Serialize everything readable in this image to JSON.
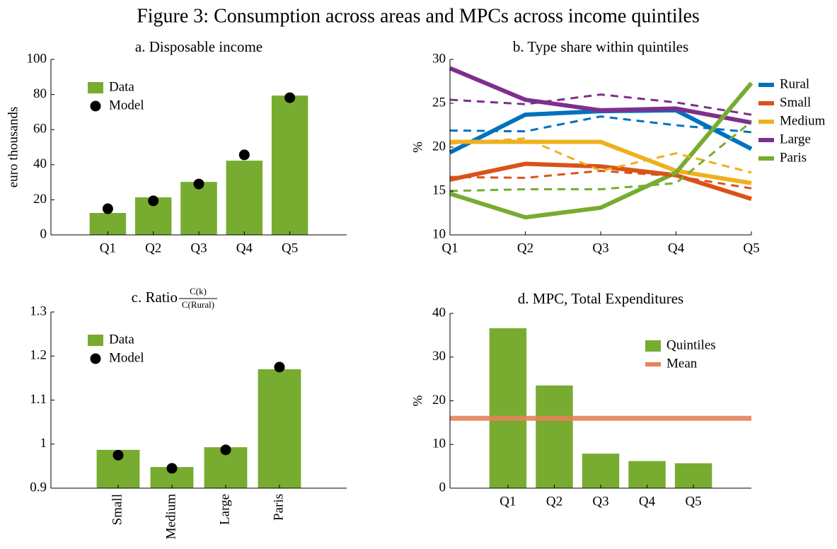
{
  "title": "Figure 3: Consumption across areas and MPCs across income quintiles",
  "chart_data": [
    {
      "type": "bar",
      "title": "a. Disposable income",
      "ylabel": "euro thousands",
      "categories": [
        "Q1",
        "Q2",
        "Q3",
        "Q4",
        "Q5"
      ],
      "ylim": [
        0,
        100
      ],
      "yticks": [
        0,
        20,
        40,
        60,
        80,
        100
      ],
      "legend": "upper left",
      "series": [
        {
          "name": "Data",
          "kind": "bar",
          "color": "#77ac30",
          "values": [
            12.5,
            21.4,
            30.2,
            42.3,
            79.4
          ]
        },
        {
          "name": "Model",
          "kind": "dot",
          "color": "#000000",
          "values": [
            14.9,
            19.4,
            29.0,
            45.6,
            78.2
          ]
        }
      ]
    },
    {
      "type": "line",
      "title": "b. Type share within quintiles",
      "ylabel": "%",
      "categories": [
        "Q1",
        "Q2",
        "Q3",
        "Q4",
        "Q5"
      ],
      "ylim": [
        10,
        30
      ],
      "yticks": [
        10,
        15,
        20,
        25,
        30
      ],
      "legend": "outside right",
      "series": [
        {
          "name": "Rural",
          "color": "#0072bd",
          "values": [
            19.4,
            23.7,
            24.1,
            24.2,
            19.8
          ]
        },
        {
          "name": "Small",
          "color": "#d95319",
          "values": [
            16.3,
            18.1,
            17.8,
            16.8,
            14.1
          ]
        },
        {
          "name": "Medium",
          "color": "#edb120",
          "values": [
            20.6,
            20.6,
            20.6,
            17.3,
            15.9
          ]
        },
        {
          "name": "Large",
          "color": "#7e2f8e",
          "values": [
            29.0,
            25.4,
            24.2,
            24.4,
            22.8
          ]
        },
        {
          "name": "Paris",
          "color": "#77ac30",
          "values": [
            14.7,
            12.0,
            13.1,
            17.1,
            27.3
          ]
        },
        {
          "color": "#0072bd",
          "dashed": true,
          "values": [
            21.9,
            21.8,
            23.5,
            22.5,
            21.7
          ]
        },
        {
          "color": "#d95319",
          "dashed": true,
          "values": [
            16.6,
            16.5,
            17.3,
            16.7,
            15.3
          ]
        },
        {
          "color": "#edb120",
          "dashed": true,
          "values": [
            20.4,
            21.0,
            17.3,
            19.3,
            17.1
          ]
        },
        {
          "color": "#7e2f8e",
          "dashed": true,
          "values": [
            25.4,
            24.9,
            26.0,
            25.1,
            23.7
          ]
        },
        {
          "color": "#77ac30",
          "dashed": true,
          "values": [
            15.0,
            15.2,
            15.2,
            15.9,
            22.9
          ]
        }
      ]
    },
    {
      "type": "bar",
      "title": "c. Ratio",
      "title_fraction": {
        "numerator": "C(k)",
        "denominator": "C(Rural)"
      },
      "categories": [
        "Small",
        "Medium",
        "Large",
        "Paris"
      ],
      "xtick_rotation": 90,
      "ylim": [
        0.9,
        1.3
      ],
      "yticks": [
        0.9,
        1,
        1.1,
        1.2,
        1.3
      ],
      "legend": "upper left",
      "series": [
        {
          "name": "Data",
          "kind": "bar",
          "color": "#77ac30",
          "values": [
            0.987,
            0.948,
            0.993,
            1.17
          ]
        },
        {
          "name": "Model",
          "kind": "dot",
          "color": "#000000",
          "values": [
            0.975,
            0.945,
            0.987,
            1.175
          ]
        }
      ]
    },
    {
      "type": "bar",
      "title": "d. MPC, Total Expenditures",
      "ylabel": "%",
      "categories": [
        "Q1",
        "Q2",
        "Q3",
        "Q4",
        "Q5"
      ],
      "ylim": [
        0,
        40
      ],
      "yticks": [
        0,
        10,
        20,
        30,
        40
      ],
      "legend": "upper right",
      "series": [
        {
          "name": "Quintiles",
          "kind": "bar",
          "color": "#77ac30",
          "values": [
            36.6,
            23.5,
            7.9,
            6.2,
            5.7
          ]
        },
        {
          "name": "Mean",
          "kind": "hline",
          "color": "#e8825a",
          "value": 16.0
        }
      ]
    }
  ]
}
